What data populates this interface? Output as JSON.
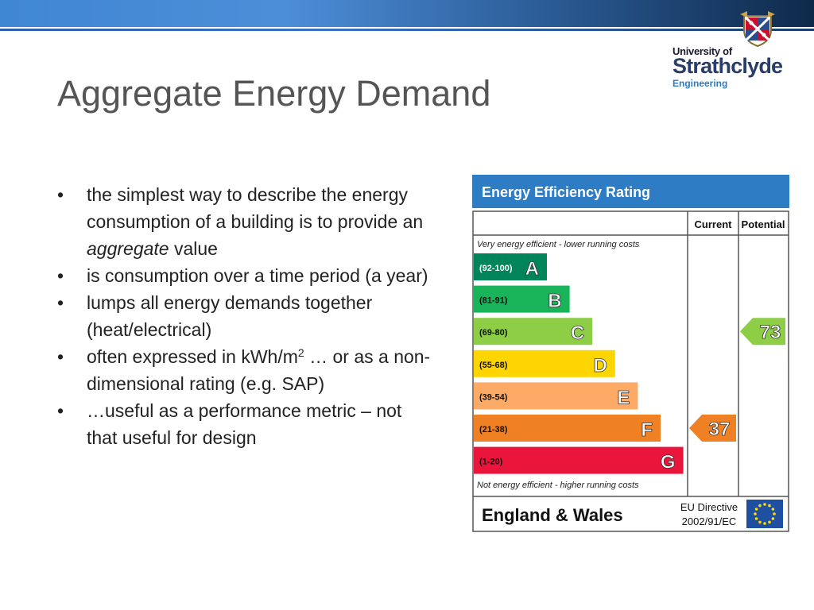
{
  "slide": {
    "title": "Aggregate Energy Demand",
    "logo": {
      "line1": "University of",
      "line2": "Strathclyde",
      "line3": "Engineering"
    },
    "bullets": [
      {
        "parts": [
          {
            "text": "the simplest way to describe the energy consumption of a building is to provide an "
          },
          {
            "text": "aggregate",
            "style": "italic"
          },
          {
            "text": " value"
          }
        ]
      },
      {
        "parts": [
          {
            "text": "is consumption over a time period (a year)"
          }
        ]
      },
      {
        "parts": [
          {
            "text": "lumps all energy demands together (heat/electrical)"
          }
        ]
      },
      {
        "parts": [
          {
            "text": "often expressed in kWh/m"
          },
          {
            "text": "2",
            "style": "sup"
          },
          {
            "text": " … or as a non-dimensional rating (e.g. SAP)"
          }
        ]
      },
      {
        "parts": [
          {
            "text": "…useful as a performance metric – not that useful for design"
          }
        ]
      }
    ]
  },
  "epc": {
    "title": "Energy Efficiency Rating",
    "col_current": "Current",
    "col_potential": "Potential",
    "top_note": "Very energy efficient - lower running costs",
    "bottom_note": "Not energy efficient - higher running costs",
    "region": "England & Wales",
    "directive_line1": "EU Directive",
    "directive_line2": "2002/91/EC",
    "bands": [
      {
        "letter": "A",
        "range": "(92-100)",
        "color": "#00855a"
      },
      {
        "letter": "B",
        "range": "(81-91)",
        "color": "#19b459"
      },
      {
        "letter": "C",
        "range": "(69-80)",
        "color": "#8dce46"
      },
      {
        "letter": "D",
        "range": "(55-68)",
        "color": "#ffd500"
      },
      {
        "letter": "E",
        "range": "(39-54)",
        "color": "#fcaa65"
      },
      {
        "letter": "F",
        "range": "(21-38)",
        "color": "#ef8023"
      },
      {
        "letter": "G",
        "range": "(1-20)",
        "color": "#e9153b"
      }
    ],
    "current": {
      "value": "37",
      "band": "F",
      "color": "#ef8023"
    },
    "potential": {
      "value": "73",
      "band": "C",
      "color": "#8dce46"
    },
    "colors": {
      "header": "#2e7cc4",
      "eu_flag": "#1f4fa0",
      "eu_stars": "#ffdd00"
    }
  }
}
